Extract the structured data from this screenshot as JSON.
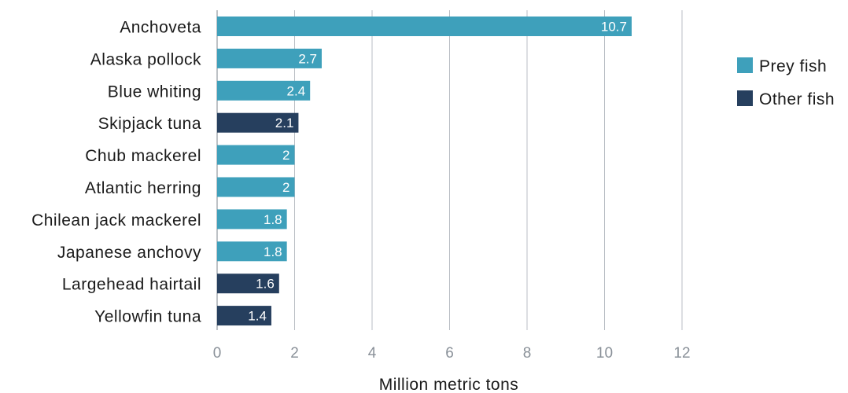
{
  "chart_data": {
    "type": "bar",
    "orientation": "horizontal",
    "categories": [
      "Anchoveta",
      "Alaska pollock",
      "Blue whiting",
      "Skipjack tuna",
      "Chub mackerel",
      "Atlantic herring",
      "Chilean jack mackerel",
      "Japanese anchovy",
      "Largehead hairtail",
      "Yellowfin tuna"
    ],
    "values": [
      10.7,
      2.7,
      2.4,
      2.1,
      2,
      2,
      1.8,
      1.8,
      1.6,
      1.4
    ],
    "value_labels": [
      "10.7",
      "2.7",
      "2.4",
      "2.1",
      "2",
      "2",
      "1.8",
      "1.8",
      "1.6",
      "1.4"
    ],
    "groups": [
      "Prey fish",
      "Prey fish",
      "Prey fish",
      "Other fish",
      "Prey fish",
      "Prey fish",
      "Prey fish",
      "Prey fish",
      "Other fish",
      "Other fish"
    ],
    "legend": [
      {
        "name": "Prey fish",
        "color": "#3ea0bb"
      },
      {
        "name": "Other fish",
        "color": "#263f5e"
      }
    ],
    "legend_position": "right",
    "xlabel": "Million metric tons",
    "ylabel": "",
    "xlim": [
      0,
      12
    ],
    "xticks": [
      "0",
      "2",
      "4",
      "6",
      "8",
      "10",
      "12"
    ],
    "grid": "vertical"
  }
}
